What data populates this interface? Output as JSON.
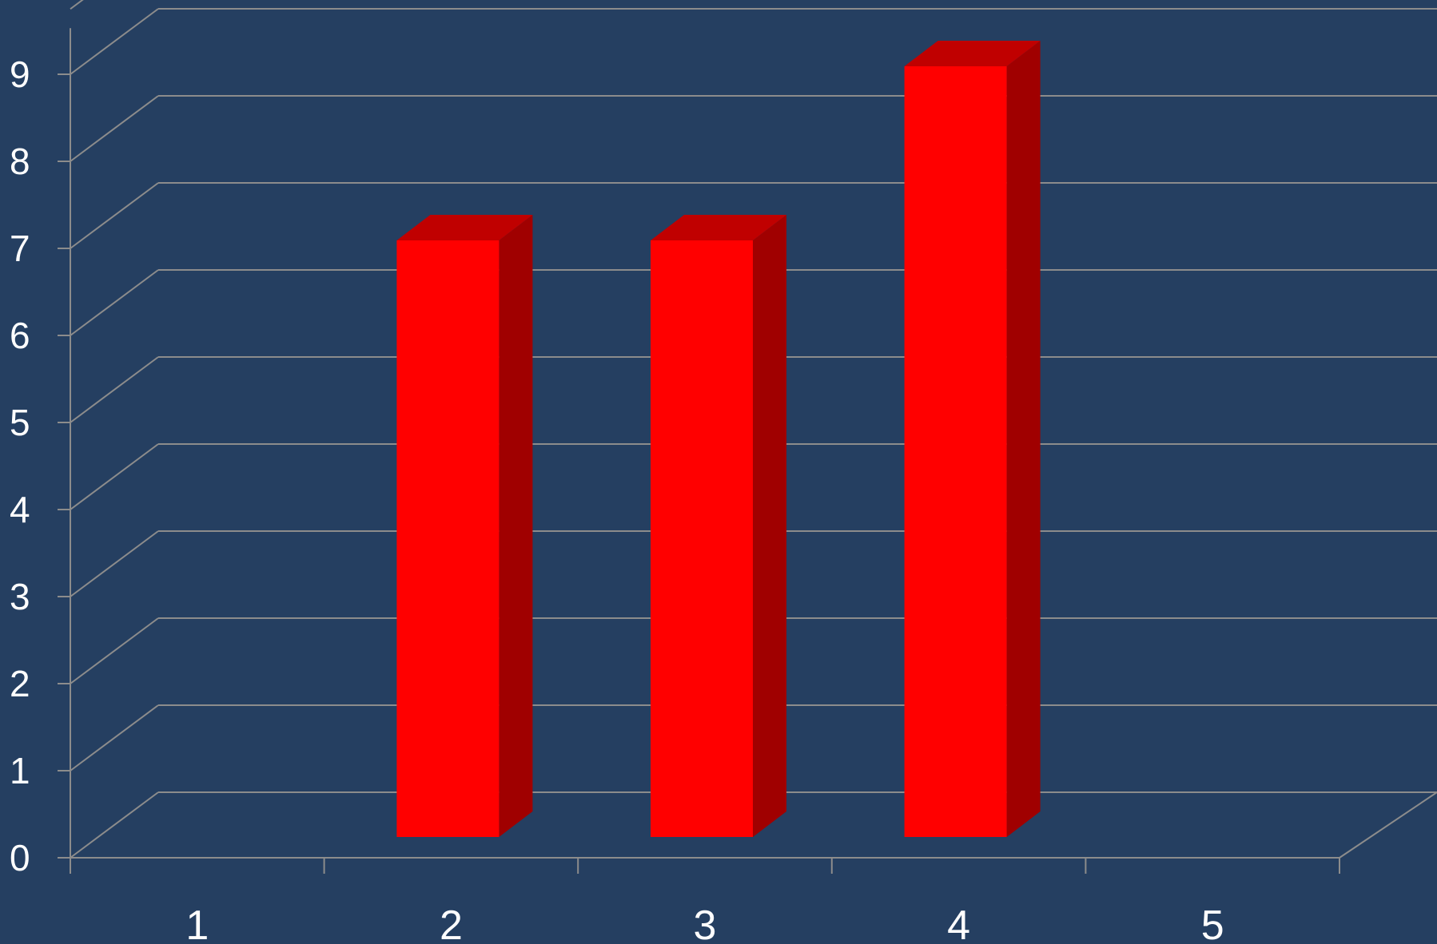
{
  "chart_data": {
    "type": "bar",
    "style": "3d-column",
    "categories": [
      "1",
      "2",
      "3",
      "4",
      "5"
    ],
    "values": [
      0,
      7,
      7,
      9,
      0
    ],
    "yticks": [
      "0",
      "1",
      "2",
      "3",
      "4",
      "5",
      "6",
      "7",
      "8",
      "9"
    ],
    "ylim": [
      0,
      9.75
    ],
    "grid": true,
    "legend": "none",
    "colors": {
      "background": "#253f61",
      "grid": "#8c8c8c",
      "bar_front": "#ff0000",
      "bar_top": "#c00000",
      "bar_side": "#a00000",
      "text": "#ffffff"
    }
  }
}
